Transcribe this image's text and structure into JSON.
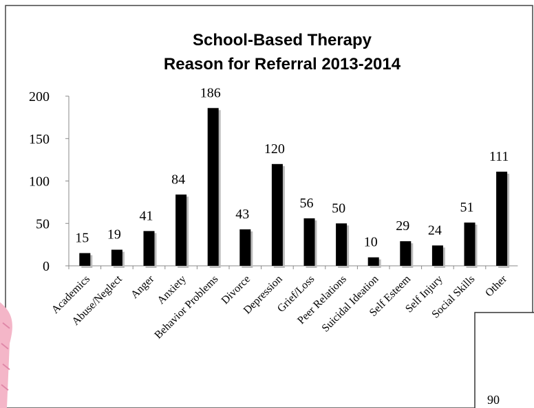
{
  "chart_data": {
    "type": "bar",
    "title": "School-Based Therapy",
    "subtitle": "Reason for Referral 2013-2014",
    "categories": [
      "Academics",
      "Abuse/Neglect",
      "Anger",
      "Anxiety",
      "Behavior Problems",
      "Divorce",
      "Depression",
      "Grief/Loss",
      "Peer Relations",
      "Suicidal Ideation",
      "Self Esteem",
      "Self Injury",
      "Social Skills",
      "Other"
    ],
    "values": [
      15,
      19,
      41,
      84,
      186,
      43,
      120,
      56,
      50,
      10,
      29,
      24,
      51,
      111
    ],
    "color": "#000000",
    "ylim": [
      0,
      200
    ],
    "yticks": [
      0,
      50,
      100,
      150,
      200
    ],
    "grid": false
  },
  "background_fragment": {
    "tick_label": "90"
  }
}
